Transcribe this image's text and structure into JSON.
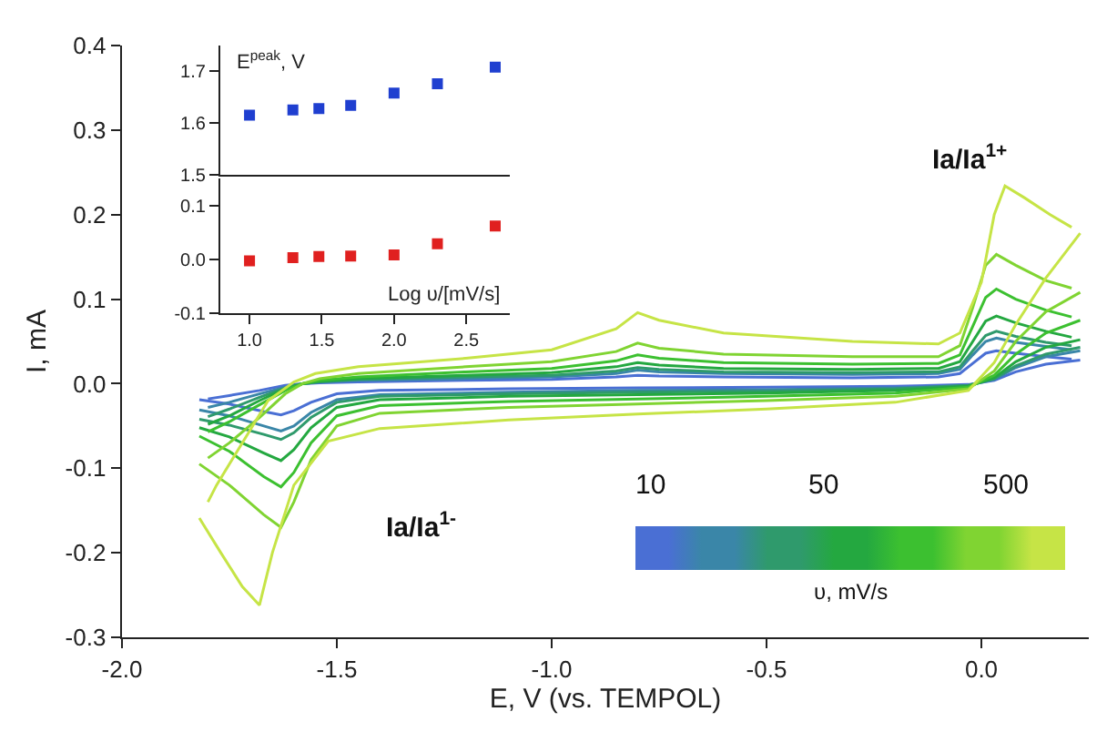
{
  "chart_data": [
    {
      "type": "line",
      "xlabel": "E, V (vs. TEMPOL)",
      "ylabel": "I, mA",
      "grid": false,
      "xlim": [
        -2.0,
        0.25
      ],
      "xticks": [
        {
          "value": -2,
          "label": "-2.0"
        },
        -1.5,
        {
          "value": -1,
          "label": "-1.0"
        },
        -0.5,
        {
          "value": 0,
          "label": "0.0"
        }
      ],
      "ylim": [
        -0.3,
        0.4
      ],
      "yticks": [
        -0.3,
        -0.2,
        -0.1,
        {
          "value": 0,
          "label": "0.0"
        },
        0.1,
        0.2,
        0.3,
        0.4
      ],
      "annotations": [
        "Ia/Ia$^{1+}$",
        "Ia/Ia$^{1-}$",
        "10",
        "50",
        "500",
        "υ, mV/s"
      ],
      "series": [
        {
          "color": "#4a6fd4",
          "x": [
            -1.82,
            -1.75,
            -1.67,
            -1.63,
            -1.6,
            -1.56,
            -1.5,
            -1.4,
            -1.1,
            -0.8,
            -0.5,
            -0.2,
            -0.03,
            0.03,
            0.08,
            0.15,
            0.23
          ],
          "values": [
            -0.019,
            -0.024,
            -0.033,
            -0.037,
            -0.032,
            -0.022,
            -0.012,
            -0.008,
            -0.006,
            -0.005,
            -0.004,
            -0.003,
            -0.001,
            0.004,
            0.014,
            0.023,
            0.028
          ]
        },
        {
          "color": "#4a6fd4",
          "x": [
            -1.8,
            -1.75,
            -1.68,
            -1.62,
            -1.58,
            -1.54,
            -1.45,
            -1.2,
            -1.0,
            -0.85,
            -0.8,
            -0.75,
            -0.6,
            -0.3,
            -0.1,
            -0.05,
            -0.02,
            0.01,
            0.035,
            0.08,
            0.15,
            0.21
          ],
          "values": [
            -0.018,
            -0.014,
            -0.008,
            -0.002,
            0.0,
            0.001,
            0.002,
            0.004,
            0.005,
            0.008,
            0.01,
            0.009,
            0.008,
            0.007,
            0.008,
            0.012,
            0.024,
            0.036,
            0.039,
            0.036,
            0.032,
            0.029
          ]
        },
        {
          "color": "#3a86a8",
          "x": [
            -1.82,
            -1.75,
            -1.67,
            -1.63,
            -1.6,
            -1.56,
            -1.5,
            -1.4,
            -1.1,
            -0.8,
            -0.5,
            -0.2,
            -0.03,
            0.03,
            0.08,
            0.15,
            0.23
          ],
          "values": [
            -0.031,
            -0.038,
            -0.05,
            -0.056,
            -0.05,
            -0.034,
            -0.019,
            -0.013,
            -0.01,
            -0.008,
            -0.007,
            -0.005,
            -0.002,
            0.005,
            0.019,
            0.032,
            0.039
          ]
        },
        {
          "color": "#3a86a8",
          "x": [
            -1.8,
            -1.75,
            -1.68,
            -1.62,
            -1.58,
            -1.54,
            -1.45,
            -1.2,
            -1.0,
            -0.85,
            -0.8,
            -0.75,
            -0.6,
            -0.3,
            -0.1,
            -0.05,
            -0.02,
            0.01,
            0.035,
            0.08,
            0.15,
            0.21
          ],
          "values": [
            -0.028,
            -0.022,
            -0.012,
            -0.004,
            0.0,
            0.002,
            0.004,
            0.006,
            0.008,
            0.012,
            0.016,
            0.014,
            0.012,
            0.011,
            0.012,
            0.017,
            0.034,
            0.05,
            0.054,
            0.049,
            0.044,
            0.04
          ]
        },
        {
          "color": "#2f9a6c",
          "x": [
            -1.82,
            -1.75,
            -1.67,
            -1.63,
            -1.6,
            -1.56,
            -1.5,
            -1.4,
            -1.1,
            -0.8,
            -0.5,
            -0.2,
            -0.03,
            0.03,
            0.08,
            0.15,
            0.23
          ],
          "values": [
            -0.042,
            -0.049,
            -0.06,
            -0.066,
            -0.058,
            -0.04,
            -0.022,
            -0.015,
            -0.012,
            -0.01,
            -0.009,
            -0.006,
            -0.002,
            0.006,
            0.021,
            0.035,
            0.043
          ]
        },
        {
          "color": "#2f9a6c",
          "x": [
            -1.8,
            -1.75,
            -1.68,
            -1.62,
            -1.58,
            -1.54,
            -1.45,
            -1.2,
            -1.0,
            -0.85,
            -0.8,
            -0.75,
            -0.6,
            -0.3,
            -0.1,
            -0.05,
            -0.02,
            0.01,
            0.035,
            0.08,
            0.15,
            0.21
          ],
          "values": [
            -0.039,
            -0.03,
            -0.016,
            -0.005,
            0.0,
            0.002,
            0.005,
            0.008,
            0.01,
            0.015,
            0.019,
            0.017,
            0.014,
            0.013,
            0.014,
            0.02,
            0.039,
            0.057,
            0.062,
            0.056,
            0.049,
            0.045
          ]
        },
        {
          "color": "#24a840",
          "x": [
            -1.82,
            -1.75,
            -1.67,
            -1.63,
            -1.6,
            -1.56,
            -1.5,
            -1.4,
            -1.1,
            -0.8,
            -0.5,
            -0.2,
            -0.03,
            0.03,
            0.08,
            0.15,
            0.23
          ],
          "values": [
            -0.052,
            -0.063,
            -0.082,
            -0.091,
            -0.078,
            -0.052,
            -0.028,
            -0.019,
            -0.015,
            -0.013,
            -0.011,
            -0.008,
            -0.003,
            0.007,
            0.026,
            0.043,
            0.052
          ]
        },
        {
          "color": "#24a840",
          "x": [
            -1.8,
            -1.75,
            -1.68,
            -1.62,
            -1.58,
            -1.54,
            -1.45,
            -1.2,
            -1.0,
            -0.85,
            -0.8,
            -0.75,
            -0.6,
            -0.3,
            -0.1,
            -0.05,
            -0.02,
            0.01,
            0.035,
            0.08,
            0.15,
            0.21
          ],
          "values": [
            -0.048,
            -0.038,
            -0.02,
            -0.006,
            0.0,
            0.003,
            0.006,
            0.01,
            0.013,
            0.02,
            0.025,
            0.022,
            0.018,
            0.017,
            0.018,
            0.026,
            0.05,
            0.074,
            0.08,
            0.072,
            0.062,
            0.055
          ]
        },
        {
          "color": "#3cc030",
          "x": [
            -1.82,
            -1.75,
            -1.67,
            -1.63,
            -1.6,
            -1.56,
            -1.5,
            -1.4,
            -1.1,
            -0.8,
            -0.5,
            -0.2,
            -0.03,
            0.03,
            0.08,
            0.15,
            0.23
          ],
          "values": [
            -0.062,
            -0.08,
            -0.11,
            -0.122,
            -0.105,
            -0.07,
            -0.038,
            -0.026,
            -0.021,
            -0.018,
            -0.015,
            -0.011,
            -0.004,
            0.01,
            0.035,
            0.06,
            0.075
          ]
        },
        {
          "color": "#3cc030",
          "x": [
            -1.8,
            -1.75,
            -1.68,
            -1.62,
            -1.58,
            -1.54,
            -1.45,
            -1.2,
            -1.0,
            -0.85,
            -0.8,
            -0.75,
            -0.6,
            -0.3,
            -0.1,
            -0.05,
            -0.02,
            0.01,
            0.035,
            0.08,
            0.15,
            0.21
          ],
          "values": [
            -0.057,
            -0.045,
            -0.025,
            -0.008,
            0.0,
            0.004,
            0.008,
            0.014,
            0.018,
            0.027,
            0.034,
            0.03,
            0.025,
            0.023,
            0.024,
            0.034,
            0.068,
            0.102,
            0.112,
            0.1,
            0.087,
            0.079
          ]
        },
        {
          "color": "#80d432",
          "x": [
            -1.82,
            -1.75,
            -1.67,
            -1.63,
            -1.6,
            -1.56,
            -1.5,
            -1.4,
            -1.1,
            -0.8,
            -0.5,
            -0.2,
            -0.03,
            0.03,
            0.08,
            0.15,
            0.23
          ],
          "values": [
            -0.095,
            -0.12,
            -0.155,
            -0.17,
            -0.14,
            -0.09,
            -0.05,
            -0.035,
            -0.028,
            -0.024,
            -0.02,
            -0.015,
            -0.006,
            0.015,
            0.05,
            0.085,
            0.108
          ]
        },
        {
          "color": "#80d432",
          "x": [
            -1.8,
            -1.75,
            -1.68,
            -1.62,
            -1.58,
            -1.54,
            -1.45,
            -1.2,
            -1.0,
            -0.85,
            -0.8,
            -0.75,
            -0.6,
            -0.3,
            -0.1,
            -0.05,
            -0.02,
            0.01,
            0.035,
            0.08,
            0.15,
            0.21
          ],
          "values": [
            -0.088,
            -0.07,
            -0.04,
            -0.012,
            0.0,
            0.006,
            0.012,
            0.02,
            0.026,
            0.038,
            0.048,
            0.042,
            0.035,
            0.032,
            0.032,
            0.045,
            0.09,
            0.14,
            0.153,
            0.14,
            0.122,
            0.113
          ]
        },
        {
          "color": "#c6e446",
          "x": [
            -1.82,
            -1.77,
            -1.72,
            -1.68,
            -1.65,
            -1.6,
            -1.52,
            -1.4,
            -1.1,
            -0.8,
            -0.5,
            -0.2,
            -0.03,
            0.03,
            0.08,
            0.15,
            0.23
          ],
          "values": [
            -0.159,
            -0.2,
            -0.24,
            -0.262,
            -0.2,
            -0.12,
            -0.068,
            -0.053,
            -0.043,
            -0.036,
            -0.03,
            -0.022,
            -0.008,
            0.025,
            0.07,
            0.125,
            0.178
          ]
        },
        {
          "color": "#c6e446",
          "x": [
            -1.8,
            -1.78,
            -1.72,
            -1.66,
            -1.6,
            -1.55,
            -1.45,
            -1.2,
            -1.0,
            -0.85,
            -0.8,
            -0.75,
            -0.6,
            -0.3,
            -0.1,
            -0.05,
            0.0,
            0.03,
            0.055,
            0.1,
            0.16,
            0.21
          ],
          "values": [
            -0.14,
            -0.12,
            -0.07,
            -0.02,
            0.002,
            0.012,
            0.02,
            0.03,
            0.04,
            0.065,
            0.084,
            0.075,
            0.06,
            0.05,
            0.047,
            0.06,
            0.12,
            0.2,
            0.234,
            0.22,
            0.2,
            0.185
          ]
        }
      ]
    },
    {
      "type": "scatter",
      "title": "E$^{peak}$, V",
      "marker": "square",
      "tick_labels": "y",
      "xlim": [
        0.8,
        2.8
      ],
      "ylim": [
        1.5,
        1.75
      ],
      "yticks": [
        1.5,
        1.6,
        1.7
      ],
      "series": [
        {
          "color": "#1f3fd0",
          "x": [
            1.0,
            1.3,
            1.48,
            1.7,
            2.0,
            2.3,
            2.7
          ],
          "values": [
            1.615,
            1.625,
            1.628,
            1.634,
            1.658,
            1.676,
            1.708
          ]
        }
      ]
    },
    {
      "type": "scatter",
      "xlabel": "Log υ/[mV/s]",
      "marker": "square",
      "xlim": [
        0.8,
        2.8
      ],
      "xticks": [
        {
          "value": 1,
          "label": "1.0"
        },
        1.5,
        {
          "value": 2,
          "label": "2.0"
        },
        2.5
      ],
      "ylim": [
        -0.1,
        0.15
      ],
      "yticks": [
        -0.1,
        {
          "value": 0,
          "label": "0.0"
        },
        0.1
      ],
      "series": [
        {
          "color": "#e0201f",
          "x": [
            1.0,
            1.3,
            1.48,
            1.7,
            2.0,
            2.3,
            2.7
          ],
          "values": [
            -0.003,
            0.003,
            0.005,
            0.006,
            0.008,
            0.029,
            0.062
          ]
        }
      ]
    }
  ]
}
